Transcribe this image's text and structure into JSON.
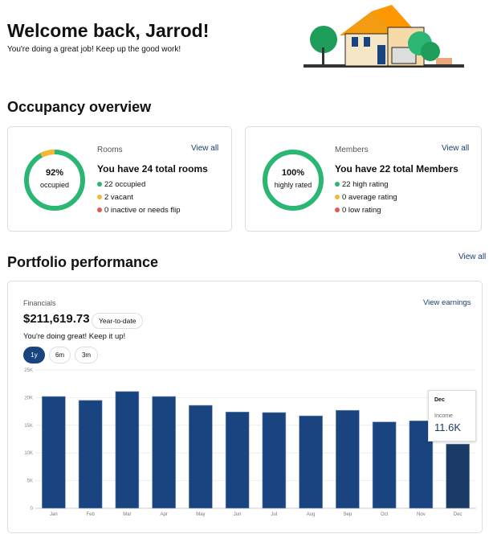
{
  "header": {
    "title": "Welcome back, Jarrod!",
    "subtitle": "You're doing a great job! Keep up the good work!"
  },
  "occupancy": {
    "title": "Occupancy overview",
    "rooms": {
      "label": "Rooms",
      "view_all": "View all",
      "percent": "92%",
      "percent_label": "occupied",
      "headline": "You have 24 total rooms",
      "fill": 0.92,
      "legend": [
        {
          "text": "22 occupied",
          "color": "#2bb673"
        },
        {
          "text": "2 vacant",
          "color": "#f7b731"
        },
        {
          "text": "0 inactive or needs flip",
          "color": "#e05a5a"
        }
      ]
    },
    "members": {
      "label": "Members",
      "view_all": "View all",
      "percent": "100%",
      "percent_label": "highly rated",
      "headline": "You have 22 total Members",
      "fill": 1.0,
      "legend": [
        {
          "text": "22 high rating",
          "color": "#2bb673"
        },
        {
          "text": "0 average rating",
          "color": "#f7b731"
        },
        {
          "text": "0 low rating",
          "color": "#e05a5a"
        }
      ]
    }
  },
  "portfolio": {
    "title": "Portfolio performance",
    "view_all": "View all",
    "financials": {
      "label": "Financials",
      "view_earnings": "View earnings",
      "amount": "$211,619.73",
      "badge": "Year-to-date",
      "message": "You're doing great! Keep it up!",
      "ranges": [
        "1y",
        "6m",
        "3m"
      ],
      "selected_range": "1y"
    },
    "tooltip": {
      "month": "Dec",
      "label": "Income",
      "value": "11.6K"
    }
  },
  "chart_data": {
    "type": "bar",
    "categories": [
      "Jan",
      "Feb",
      "Mar",
      "Apr",
      "May",
      "Jun",
      "Jul",
      "Aug",
      "Sep",
      "Oct",
      "Nov",
      "Dec"
    ],
    "values": [
      20.2,
      19.5,
      21.1,
      20.2,
      18.6,
      17.4,
      17.3,
      16.7,
      17.7,
      15.6,
      15.8,
      11.6
    ],
    "unit": "K",
    "yticks": [
      "0",
      "5K",
      "10K",
      "15K",
      "20K",
      "25K"
    ],
    "ylim": [
      0,
      25
    ],
    "grid": true,
    "bar_color": "#1a4480",
    "highlight_color": "#1b3a66"
  }
}
